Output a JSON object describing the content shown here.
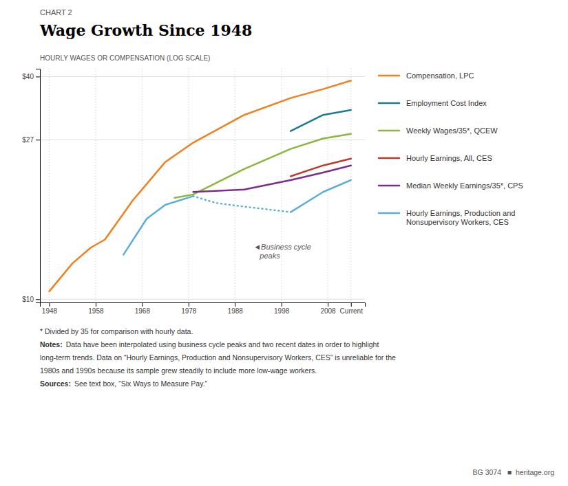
{
  "chart_data": {
    "type": "line",
    "subtitle": "CHART 2",
    "title": "Wage Growth Since 1948",
    "y_label": "HOURLY WAGES OR COMPENSATION (LOG SCALE)",
    "log": "y",
    "grid": true,
    "legend": "right",
    "xlim": [
      1946,
      2016
    ],
    "xticks": [
      1948,
      1958,
      1968,
      1978,
      1988,
      1998,
      2008,
      {
        "value": 2013,
        "label": "Current"
      }
    ],
    "ylim": [
      9.8,
      42
    ],
    "yticks": [
      {
        "value": 10,
        "label": "$10"
      },
      {
        "value": 27,
        "label": "$27"
      },
      {
        "value": 40,
        "label": "$40"
      }
    ],
    "series": [
      {
        "name": "Compensation, LPC",
        "color": "#f08020",
        "line_style": "solid",
        "x": [
          1948,
          1953,
          1957,
          1960,
          1966,
          1969,
          1973,
          1979,
          1990,
          2000,
          2007,
          2013
        ],
        "values": [
          10.5,
          12.5,
          13.8,
          14.5,
          18.5,
          20.5,
          23.5,
          26.5,
          31.5,
          35.0,
          37.0,
          39.0
        ]
      },
      {
        "name": "Employment Cost Index",
        "color": "#1a7c8c",
        "line_style": "solid",
        "x": [
          2000,
          2007,
          2013
        ],
        "values": [
          28.5,
          31.5,
          32.5
        ]
      },
      {
        "name": "Weekly Wages/35*, QCEW",
        "color": "#8db63c",
        "line_style": "solid",
        "x": [
          1975,
          1979,
          1990,
          2000,
          2007,
          2013
        ],
        "values": [
          18.8,
          19.2,
          22.5,
          25.5,
          27.2,
          28.0
        ]
      },
      {
        "name": "Hourly Earnings, All, CES",
        "color": "#c0392b",
        "line_style": "solid",
        "x": [
          2000,
          2007,
          2013
        ],
        "values": [
          21.5,
          23.0,
          24.0
        ]
      },
      {
        "name": "Median Weekly Earnings/35*, CPS",
        "color": "#7b2d8b",
        "line_style": "solid",
        "x": [
          1979,
          1990,
          2000,
          2007,
          2013
        ],
        "values": [
          19.5,
          19.8,
          21.0,
          22.0,
          23.0
        ]
      },
      {
        "name": "Hourly Earnings, Production and\nNonsupervisory Workers, CES",
        "color": "#5bafd6",
        "line_style": "solid",
        "x": [
          1964,
          1969,
          1973,
          1979
        ],
        "values": [
          13.2,
          16.5,
          18.0,
          19.0
        ]
      },
      {
        "color": "#5bafd6",
        "line_style": "dotted",
        "x": [
          1979,
          1984,
          1990,
          1995,
          2000
        ],
        "values": [
          19.0,
          18.2,
          17.8,
          17.5,
          17.2
        ]
      },
      {
        "color": "#5bafd6",
        "line_style": "solid",
        "x": [
          2000,
          2007,
          2013
        ],
        "values": [
          17.2,
          19.5,
          21.0
        ]
      }
    ],
    "annotations": [
      {
        "text": "◄Business cycle\n   peaks",
        "x": 1992,
        "y": 13.5
      }
    ],
    "footnotes": [
      {
        "text": "* Divided by 35 for comparison with hourly data."
      },
      {
        "label": "Notes:",
        "text": "Data have been interpolated using business cycle peaks and two recent dates in order to highlight"
      },
      {
        "text": "long-term trends. Data on “Hourly Earnings, Production and Nonsupervisory Workers, CES” is unreliable for the"
      },
      {
        "text": "1980s and 1990s because its sample grew steadily to include more low-wage workers."
      },
      {
        "label": "Sources:",
        "text": "See text box, “Six Ways to Measure Pay.”"
      }
    ],
    "credit": "BG 3074   ■  heritage.org"
  }
}
